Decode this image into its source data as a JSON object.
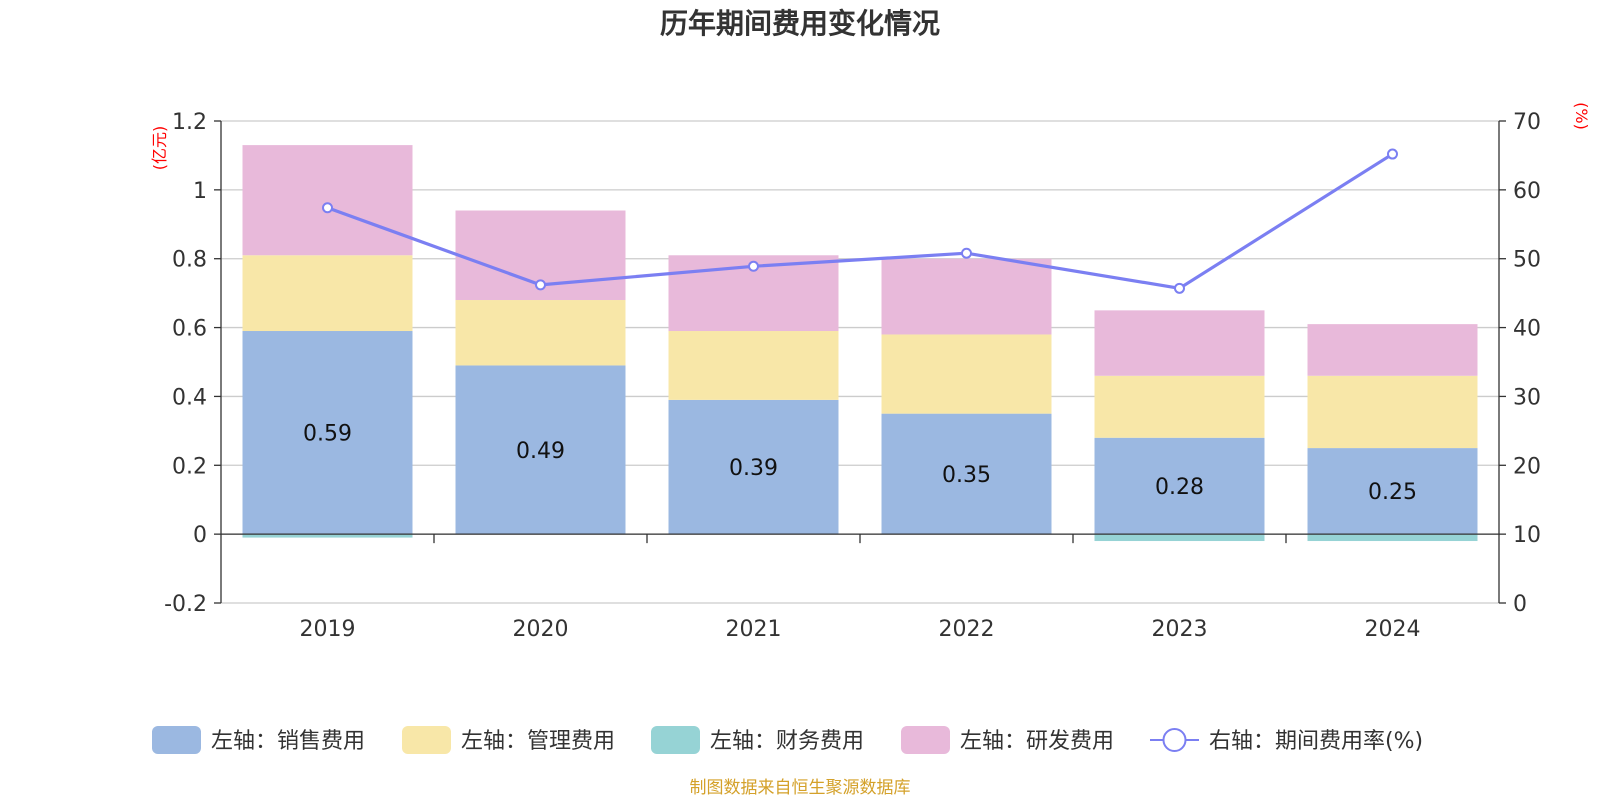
{
  "chart_data": {
    "type": "bar",
    "title": "历年期间费用变化情况",
    "categories": [
      "2019",
      "2020",
      "2021",
      "2022",
      "2023",
      "2024"
    ],
    "series": [
      {
        "name": "左轴：销售费用",
        "axis": "left",
        "color": "#9bb8e1",
        "values": [
          0.59,
          0.49,
          0.39,
          0.35,
          0.28,
          0.25
        ]
      },
      {
        "name": "左轴：管理费用",
        "axis": "left",
        "color": "#f8e7a8",
        "values": [
          0.22,
          0.19,
          0.2,
          0.23,
          0.18,
          0.21
        ]
      },
      {
        "name": "左轴：财务费用",
        "axis": "left",
        "color": "#96d3d5",
        "values": [
          -0.01,
          0.0,
          0.0,
          0.0,
          -0.02,
          -0.02
        ]
      },
      {
        "name": "左轴：研发费用",
        "axis": "left",
        "color": "#e8b9da",
        "values": [
          0.32,
          0.26,
          0.22,
          0.22,
          0.19,
          0.15
        ]
      }
    ],
    "line_series": {
      "name": "右轴：期间费用率(%)",
      "axis": "right",
      "color": "#7b7ff2",
      "values": [
        57.4,
        46.2,
        48.9,
        50.8,
        45.7,
        65.2
      ]
    },
    "data_labels_series": 0,
    "left_axis": {
      "unit": "(亿元)",
      "ylim": [
        -0.2,
        1.2
      ],
      "ticks": [
        "1.2",
        "1",
        "0.8",
        "0.6",
        "0.4",
        "0.2",
        "0",
        "-0.2"
      ]
    },
    "right_axis": {
      "unit": "(%)",
      "ylim": [
        0,
        70
      ],
      "ticks": [
        "70",
        "60",
        "50",
        "40",
        "30",
        "20",
        "10",
        "0"
      ]
    },
    "grid": true,
    "legend_position": "bottom"
  },
  "source": {
    "text": "制图数据来自恒生聚源数据库",
    "color": "#d4a12a"
  }
}
